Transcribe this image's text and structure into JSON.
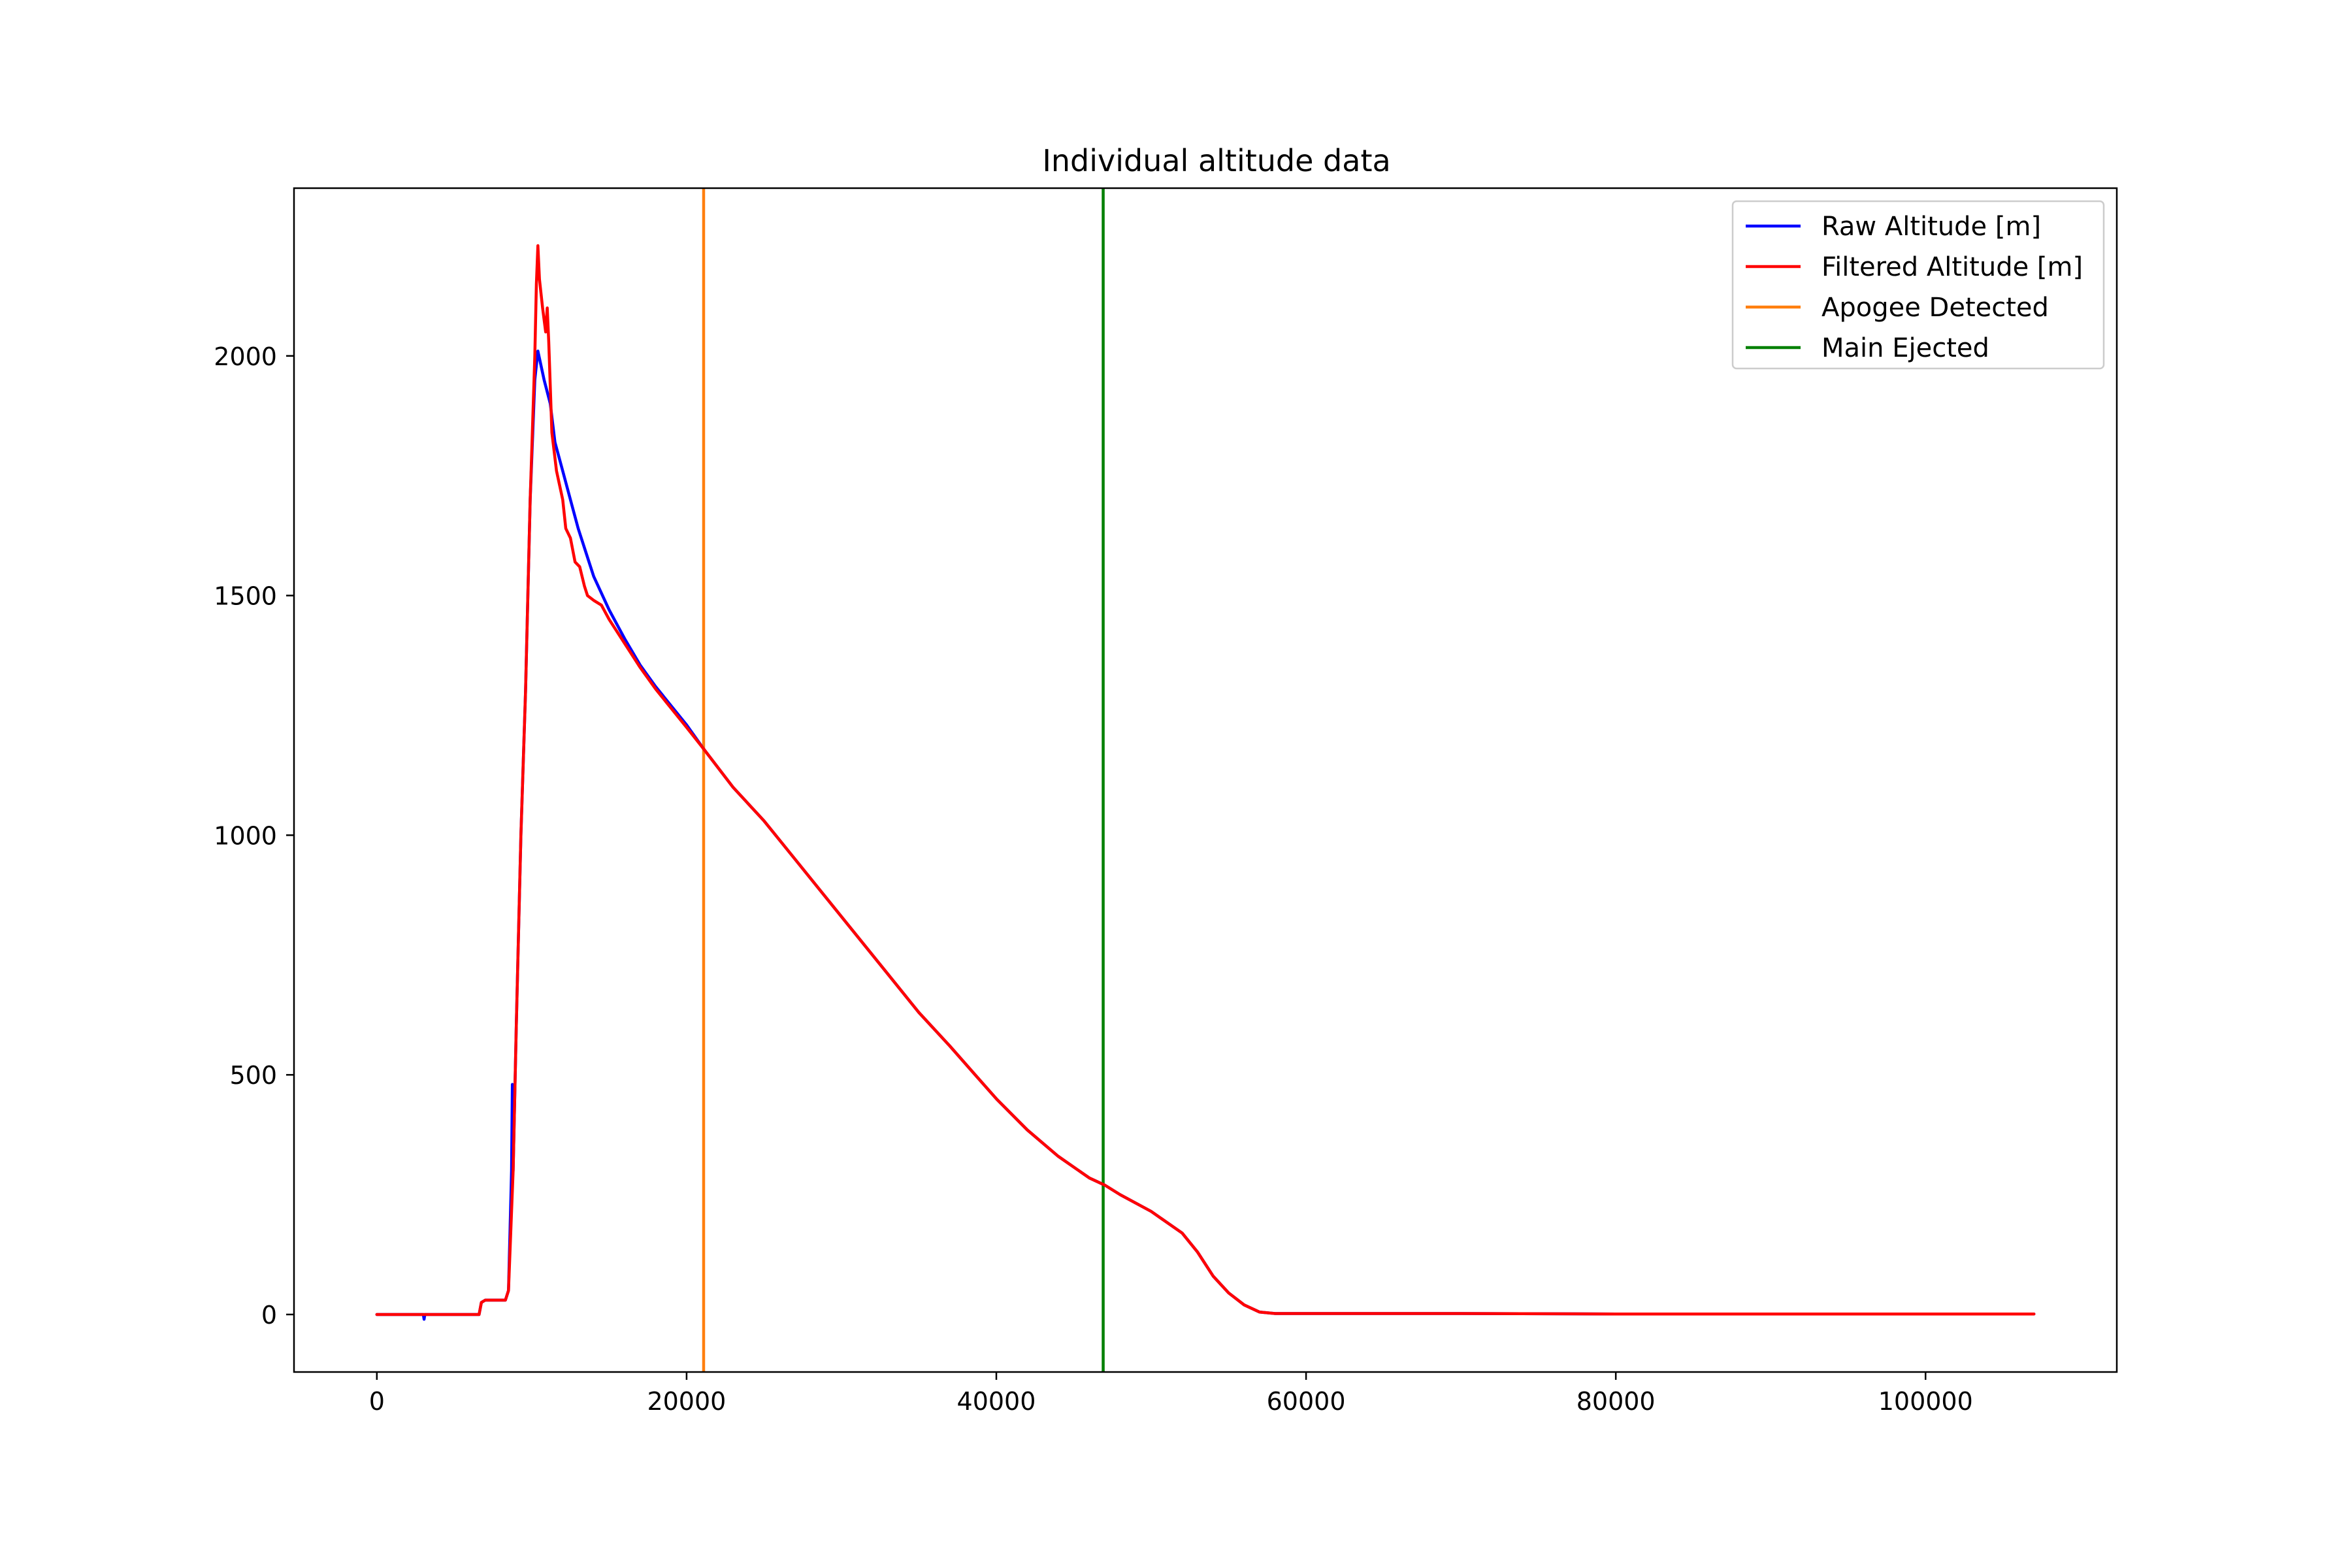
{
  "chart_data": {
    "type": "line",
    "title": "Individual altitude data",
    "xlabel": "",
    "ylabel": "",
    "xlim": [
      -5350,
      112350
    ],
    "ylim": [
      -120,
      2350
    ],
    "x_ticks": [
      0,
      20000,
      40000,
      60000,
      80000,
      100000
    ],
    "y_ticks": [
      0,
      500,
      1000,
      1500,
      2000
    ],
    "x_tick_labels": [
      "0",
      "20000",
      "40000",
      "60000",
      "80000",
      "100000"
    ],
    "y_tick_labels": [
      "0",
      "500",
      "1000",
      "1500",
      "2000"
    ],
    "grid": false,
    "legend_placement": "top-right",
    "series": [
      {
        "name": "Raw Altitude [m]",
        "color": "#0000ff",
        "points": [
          [
            0,
            0
          ],
          [
            3000,
            0
          ],
          [
            3050,
            -10
          ],
          [
            3100,
            0
          ],
          [
            6600,
            0
          ],
          [
            6750,
            25
          ],
          [
            7000,
            30
          ],
          [
            8300,
            30
          ],
          [
            8500,
            50
          ],
          [
            8700,
            300
          ],
          [
            8750,
            480
          ],
          [
            8800,
            300
          ],
          [
            9000,
            600
          ],
          [
            9300,
            1000
          ],
          [
            9600,
            1300
          ],
          [
            9900,
            1700
          ],
          [
            10200,
            1950
          ],
          [
            10400,
            2010
          ],
          [
            10800,
            1950
          ],
          [
            11200,
            1900
          ],
          [
            11500,
            1820
          ],
          [
            12000,
            1760
          ],
          [
            12500,
            1700
          ],
          [
            13000,
            1640
          ],
          [
            13500,
            1590
          ],
          [
            14000,
            1540
          ],
          [
            15000,
            1470
          ],
          [
            16000,
            1410
          ],
          [
            17000,
            1355
          ],
          [
            18000,
            1310
          ],
          [
            19000,
            1270
          ],
          [
            20000,
            1230
          ],
          [
            21100,
            1180
          ],
          [
            23000,
            1100
          ],
          [
            25000,
            1030
          ],
          [
            27000,
            950
          ],
          [
            29000,
            870
          ],
          [
            31000,
            790
          ],
          [
            33000,
            710
          ],
          [
            35000,
            630
          ],
          [
            37000,
            560
          ],
          [
            38500,
            505
          ],
          [
            40000,
            450
          ],
          [
            42000,
            385
          ],
          [
            44000,
            330
          ],
          [
            46000,
            285
          ],
          [
            47000,
            270
          ],
          [
            48000,
            250
          ],
          [
            50000,
            215
          ],
          [
            52000,
            170
          ],
          [
            53000,
            130
          ],
          [
            54000,
            80
          ],
          [
            55000,
            45
          ],
          [
            56000,
            20
          ],
          [
            57000,
            5
          ],
          [
            58000,
            2
          ],
          [
            60000,
            2
          ],
          [
            70000,
            2
          ],
          [
            80000,
            1
          ],
          [
            90000,
            1
          ],
          [
            100000,
            1
          ],
          [
            107000,
            1
          ]
        ]
      },
      {
        "name": "Filtered Altitude [m]",
        "color": "#ff0000",
        "points": [
          [
            0,
            0
          ],
          [
            6600,
            0
          ],
          [
            6750,
            25
          ],
          [
            7000,
            30
          ],
          [
            8300,
            30
          ],
          [
            8500,
            50
          ],
          [
            8800,
            300
          ],
          [
            9000,
            600
          ],
          [
            9300,
            1000
          ],
          [
            9600,
            1300
          ],
          [
            9900,
            1700
          ],
          [
            10200,
            2000
          ],
          [
            10300,
            2150
          ],
          [
            10400,
            2230
          ],
          [
            10500,
            2160
          ],
          [
            10700,
            2100
          ],
          [
            10900,
            2050
          ],
          [
            11000,
            2100
          ],
          [
            11100,
            2030
          ],
          [
            11300,
            1840
          ],
          [
            11600,
            1760
          ],
          [
            12000,
            1700
          ],
          [
            12200,
            1640
          ],
          [
            12500,
            1620
          ],
          [
            12800,
            1570
          ],
          [
            13100,
            1560
          ],
          [
            13400,
            1520
          ],
          [
            13600,
            1500
          ],
          [
            14000,
            1490
          ],
          [
            14500,
            1480
          ],
          [
            15000,
            1450
          ],
          [
            16000,
            1400
          ],
          [
            17000,
            1350
          ],
          [
            18000,
            1305
          ],
          [
            19000,
            1265
          ],
          [
            20000,
            1225
          ],
          [
            21100,
            1180
          ],
          [
            23000,
            1100
          ],
          [
            25000,
            1030
          ],
          [
            27000,
            950
          ],
          [
            29000,
            870
          ],
          [
            31000,
            790
          ],
          [
            33000,
            710
          ],
          [
            35000,
            630
          ],
          [
            37000,
            560
          ],
          [
            38500,
            505
          ],
          [
            40000,
            450
          ],
          [
            42000,
            385
          ],
          [
            44000,
            330
          ],
          [
            46000,
            285
          ],
          [
            47000,
            270
          ],
          [
            48000,
            250
          ],
          [
            50000,
            215
          ],
          [
            52000,
            170
          ],
          [
            53000,
            130
          ],
          [
            54000,
            80
          ],
          [
            55000,
            45
          ],
          [
            56000,
            20
          ],
          [
            57000,
            5
          ],
          [
            58000,
            2
          ],
          [
            60000,
            2
          ],
          [
            70000,
            2
          ],
          [
            80000,
            1
          ],
          [
            90000,
            1
          ],
          [
            100000,
            1
          ],
          [
            107000,
            1
          ]
        ]
      },
      {
        "name": "Apogee Detected",
        "color": "#ff7f0e",
        "vertical_line_x": 21100
      },
      {
        "name": "Main Ejected",
        "color": "#008000",
        "vertical_line_x": 46900
      }
    ]
  }
}
